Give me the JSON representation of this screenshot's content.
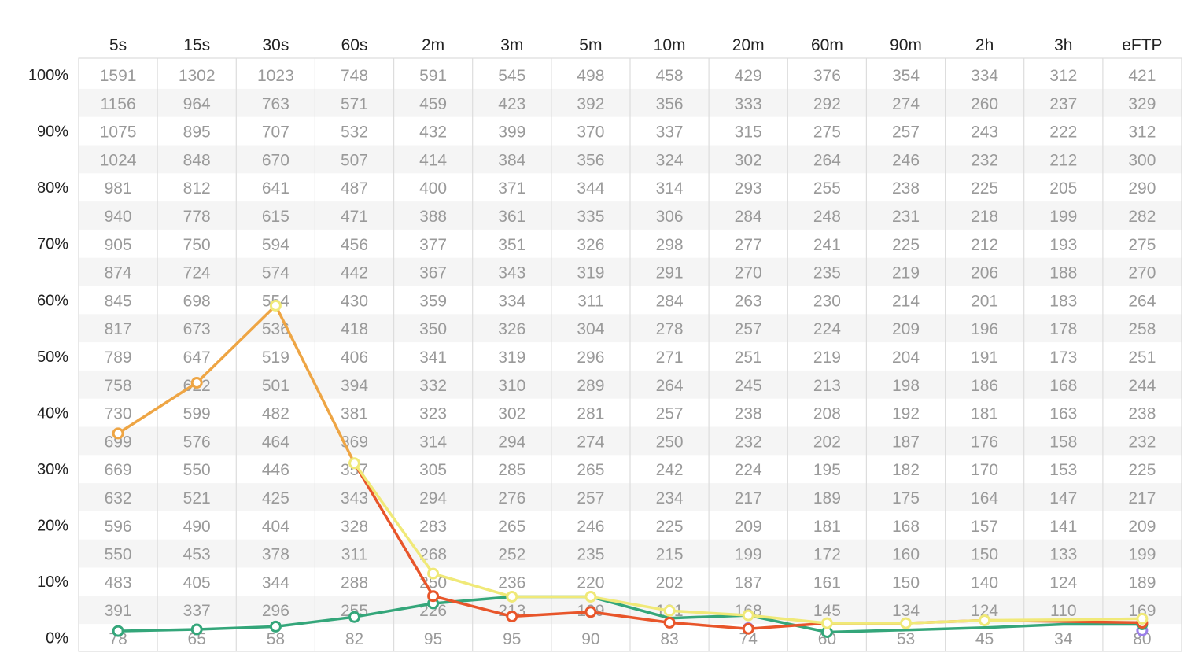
{
  "chart_data": {
    "type": "line",
    "columns": [
      "5s",
      "15s",
      "30s",
      "60s",
      "2m",
      "3m",
      "5m",
      "10m",
      "20m",
      "60m",
      "90m",
      "2h",
      "3h",
      "eFTP"
    ],
    "yticks": [
      "100%",
      "90%",
      "80%",
      "70%",
      "60%",
      "50%",
      "40%",
      "30%",
      "20%",
      "10%",
      "0%"
    ],
    "ylim": [
      0,
      100
    ],
    "grid": true,
    "table_rows": [
      [
        "1591",
        "1302",
        "1023",
        "748",
        "591",
        "545",
        "498",
        "458",
        "429",
        "376",
        "354",
        "334",
        "312",
        "421"
      ],
      [
        "1156",
        "964",
        "763",
        "571",
        "459",
        "423",
        "392",
        "356",
        "333",
        "292",
        "274",
        "260",
        "237",
        "329"
      ],
      [
        "1075",
        "895",
        "707",
        "532",
        "432",
        "399",
        "370",
        "337",
        "315",
        "275",
        "257",
        "243",
        "222",
        "312"
      ],
      [
        "1024",
        "848",
        "670",
        "507",
        "414",
        "384",
        "356",
        "324",
        "302",
        "264",
        "246",
        "232",
        "212",
        "300"
      ],
      [
        "981",
        "812",
        "641",
        "487",
        "400",
        "371",
        "344",
        "314",
        "293",
        "255",
        "238",
        "225",
        "205",
        "290"
      ],
      [
        "940",
        "778",
        "615",
        "471",
        "388",
        "361",
        "335",
        "306",
        "284",
        "248",
        "231",
        "218",
        "199",
        "282"
      ],
      [
        "905",
        "750",
        "594",
        "456",
        "377",
        "351",
        "326",
        "298",
        "277",
        "241",
        "225",
        "212",
        "193",
        "275"
      ],
      [
        "874",
        "724",
        "574",
        "442",
        "367",
        "343",
        "319",
        "291",
        "270",
        "235",
        "219",
        "206",
        "188",
        "270"
      ],
      [
        "845",
        "698",
        "554",
        "430",
        "359",
        "334",
        "311",
        "284",
        "263",
        "230",
        "214",
        "201",
        "183",
        "264"
      ],
      [
        "817",
        "673",
        "536",
        "418",
        "350",
        "326",
        "304",
        "278",
        "257",
        "224",
        "209",
        "196",
        "178",
        "258"
      ],
      [
        "789",
        "647",
        "519",
        "406",
        "341",
        "319",
        "296",
        "271",
        "251",
        "219",
        "204",
        "191",
        "173",
        "251"
      ],
      [
        "758",
        "622",
        "501",
        "394",
        "332",
        "310",
        "289",
        "264",
        "245",
        "213",
        "198",
        "186",
        "168",
        "244"
      ],
      [
        "730",
        "599",
        "482",
        "381",
        "323",
        "302",
        "281",
        "257",
        "238",
        "208",
        "192",
        "181",
        "163",
        "238"
      ],
      [
        "699",
        "576",
        "464",
        "369",
        "314",
        "294",
        "274",
        "250",
        "232",
        "202",
        "187",
        "176",
        "158",
        "232"
      ],
      [
        "669",
        "550",
        "446",
        "357",
        "305",
        "285",
        "265",
        "242",
        "224",
        "195",
        "182",
        "170",
        "153",
        "225"
      ],
      [
        "632",
        "521",
        "425",
        "343",
        "294",
        "276",
        "257",
        "234",
        "217",
        "189",
        "175",
        "164",
        "147",
        "217"
      ],
      [
        "596",
        "490",
        "404",
        "328",
        "283",
        "265",
        "246",
        "225",
        "209",
        "181",
        "168",
        "157",
        "141",
        "209"
      ],
      [
        "550",
        "453",
        "378",
        "311",
        "268",
        "252",
        "235",
        "215",
        "199",
        "172",
        "160",
        "150",
        "133",
        "199"
      ],
      [
        "483",
        "405",
        "344",
        "288",
        "250",
        "236",
        "220",
        "202",
        "187",
        "161",
        "150",
        "140",
        "124",
        "189"
      ],
      [
        "391",
        "337",
        "296",
        "255",
        "226",
        "213",
        "199",
        "181",
        "168",
        "145",
        "134",
        "124",
        "110",
        "169"
      ],
      [
        "78",
        "65",
        "58",
        "82",
        "95",
        "95",
        "90",
        "83",
        "74",
        "60",
        "53",
        "45",
        "34",
        "80"
      ]
    ],
    "series": [
      {
        "color": "#9b7fe8",
        "points": [
          [
            1,
            null
          ],
          [
            2,
            null
          ],
          [
            3,
            null
          ],
          [
            4,
            null
          ],
          [
            5,
            null
          ],
          [
            6,
            null
          ],
          [
            7,
            null
          ],
          [
            8,
            null
          ],
          [
            9,
            1.7
          ],
          [
            10,
            null
          ],
          [
            11,
            null
          ],
          [
            12,
            null
          ],
          [
            13,
            null
          ],
          [
            14,
            1.3
          ]
        ]
      },
      {
        "color": "#34a67a",
        "points": [
          [
            1,
            1.2
          ],
          [
            2,
            1.5
          ],
          [
            3,
            2.0
          ],
          [
            4,
            3.7
          ],
          [
            5,
            6.1
          ],
          [
            6,
            7.3
          ],
          [
            7,
            7.3
          ],
          [
            8,
            3.5
          ],
          [
            9,
            4.0
          ],
          [
            10,
            1.0
          ],
          [
            11,
            1.4
          ],
          [
            12,
            1.8
          ],
          [
            13,
            2.4
          ],
          [
            14,
            2.4
          ]
        ]
      },
      {
        "color": "#e8552a",
        "points": [
          [
            1,
            null
          ],
          [
            2,
            null
          ],
          [
            3,
            null
          ],
          [
            4,
            31.0
          ],
          [
            5,
            7.4
          ],
          [
            6,
            3.8
          ],
          [
            7,
            4.6
          ],
          [
            8,
            2.7
          ],
          [
            9,
            1.6
          ],
          [
            10,
            2.6
          ],
          [
            11,
            2.6
          ],
          [
            12,
            3.1
          ],
          [
            13,
            2.9
          ],
          [
            14,
            2.7
          ]
        ]
      },
      {
        "color": "#f0e978",
        "points": [
          [
            1,
            null
          ],
          [
            2,
            null
          ],
          [
            3,
            null
          ],
          [
            4,
            31.0
          ],
          [
            5,
            11.4
          ],
          [
            6,
            7.3
          ],
          [
            7,
            7.3
          ],
          [
            8,
            4.8
          ],
          [
            9,
            4.0
          ],
          [
            10,
            2.6
          ],
          [
            11,
            2.6
          ],
          [
            12,
            3.1
          ],
          [
            13,
            3.2
          ],
          [
            14,
            3.4
          ]
        ]
      },
      {
        "color": "#eea544",
        "points": [
          [
            1,
            36.3
          ],
          [
            2,
            45.3
          ],
          [
            3,
            59.0
          ],
          [
            4,
            31.0
          ]
        ]
      }
    ],
    "markers": [
      {
        "color": "#9b7fe8",
        "points": [
          [
            9,
            1.7
          ],
          [
            14,
            1.3
          ]
        ]
      },
      {
        "color": "#34a67a",
        "points": [
          [
            1,
            1.2
          ],
          [
            2,
            1.5
          ],
          [
            3,
            2.0
          ],
          [
            4,
            3.7
          ],
          [
            5,
            6.1
          ],
          [
            10,
            1.0
          ],
          [
            14,
            2.4
          ]
        ]
      },
      {
        "color": "#e8552a",
        "points": [
          [
            5,
            7.4
          ],
          [
            6,
            3.8
          ],
          [
            7,
            4.6
          ],
          [
            8,
            2.7
          ],
          [
            9,
            1.6
          ],
          [
            14,
            2.7
          ]
        ]
      },
      {
        "color": "#eea544",
        "points": [
          [
            1,
            36.3
          ],
          [
            2,
            45.3
          ]
        ]
      },
      {
        "color": "#f0e978",
        "points": [
          [
            3,
            59.0
          ],
          [
            4,
            31.0
          ],
          [
            5,
            11.4
          ],
          [
            6,
            7.3
          ],
          [
            7,
            7.3
          ],
          [
            8,
            4.8
          ],
          [
            9,
            4.0
          ],
          [
            10,
            2.6
          ],
          [
            11,
            2.6
          ],
          [
            12,
            3.1
          ],
          [
            14,
            3.4
          ]
        ]
      }
    ]
  }
}
